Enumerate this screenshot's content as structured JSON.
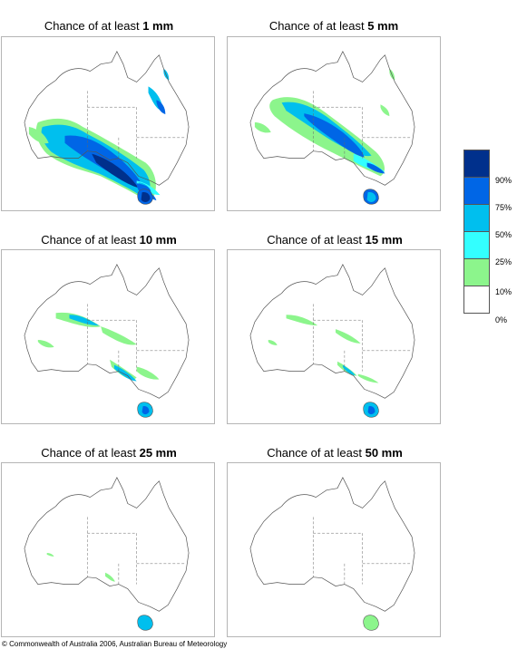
{
  "panels": [
    {
      "prefix": "Chance of at least ",
      "amount": "1 mm"
    },
    {
      "prefix": "Chance of at least ",
      "amount": "5 mm"
    },
    {
      "prefix": "Chance of at least ",
      "amount": "10 mm"
    },
    {
      "prefix": "Chance of at least ",
      "amount": "15 mm"
    },
    {
      "prefix": "Chance of at least ",
      "amount": "25 mm"
    },
    {
      "prefix": "Chance of at least ",
      "amount": "50 mm"
    }
  ],
  "legend": {
    "labels": [
      "90%",
      "75%",
      "50%",
      "25%",
      "10%",
      "0%"
    ],
    "colors": [
      "#00308c",
      "#0066e6",
      "#00bfee",
      "#33ffff",
      "#8cf58c",
      "#ffffff"
    ]
  },
  "footer": "© Commonwealth of Australia 2006, Australian Bureau of Meteorology"
}
